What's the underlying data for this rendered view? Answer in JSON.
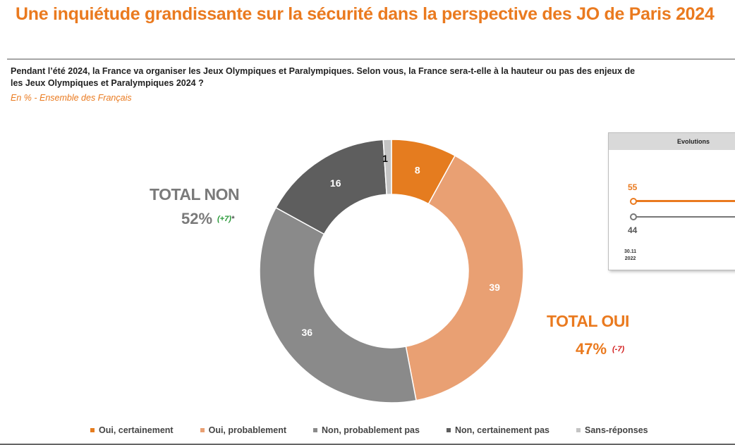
{
  "header": {
    "title": "Une inquiétude grandissante sur la sécurité dans la perspective des JO de Paris 2024",
    "question_line1": "Pendant l’été 2024, la France va organiser les Jeux Olympiques et Paralympiques. Selon vous, la France sera-t-elle à la hauteur ou pas des enjeux de",
    "question_line2": "les Jeux Olympiques et Paralympiques 2024 ?",
    "subtitle": "En % - Ensemble des Français"
  },
  "totals": {
    "non_label": "TOTAL NON",
    "non_value": "52%",
    "non_variation": "(+7)",
    "non_note": "*",
    "oui_label": "TOTAL OUI",
    "oui_value": "47%",
    "oui_variation": "(-7)"
  },
  "evolutions": {
    "header": "Evolutions",
    "oui_value": "55",
    "non_value": "44",
    "date_line1": "30.11",
    "date_line2": "2022"
  },
  "colors": {
    "oui_certainement": "#e57c1f",
    "oui_probablement": "#e9a073",
    "non_probablement_pas": "#8a8a8a",
    "non_certainement_pas": "#5e5e5e",
    "sans_reponses": "#c4c4c4"
  },
  "chart_data": {
    "type": "pie",
    "donut": true,
    "title": "",
    "unit": "%",
    "categories": [
      "Oui, certainement",
      "Oui, probablement",
      "Non, probablement pas",
      "Non, certainement pas",
      "Sans-réponses"
    ],
    "values": [
      8,
      39,
      36,
      16,
      1
    ],
    "colors": [
      "#e57c1f",
      "#e9a073",
      "#8a8a8a",
      "#5e5e5e",
      "#c4c4c4"
    ],
    "label_colors": [
      "#ffffff",
      "#ffffff",
      "#ffffff",
      "#ffffff",
      "#000000"
    ],
    "legend_position": "bottom",
    "start_angle_deg": 0,
    "direction": "clockwise"
  }
}
